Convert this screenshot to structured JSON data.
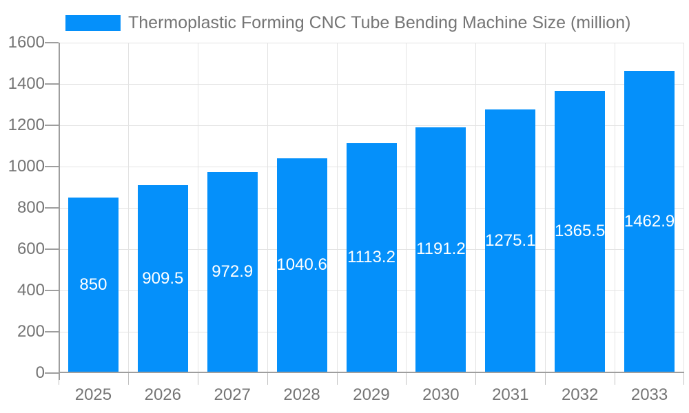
{
  "chart_data": {
    "type": "bar",
    "title": "Thermoplastic Forming CNC Tube Bending Machine Size (million)",
    "categories": [
      "2025",
      "2026",
      "2027",
      "2028",
      "2029",
      "2030",
      "2031",
      "2032",
      "2033"
    ],
    "values": [
      850,
      909.5,
      972.9,
      1040.6,
      1113.2,
      1191.2,
      1275.1,
      1365.5,
      1462.9
    ],
    "value_labels": [
      "850",
      "909.5",
      "972.9",
      "1040.6",
      "1113.2",
      "1191.2",
      "1275.1",
      "1365.5",
      "1462.9"
    ],
    "xlabel": "",
    "ylabel": "",
    "ylim": [
      0,
      1600
    ],
    "y_ticks": [
      0,
      200,
      400,
      600,
      800,
      1000,
      1200,
      1400,
      1600
    ],
    "grid": true,
    "legend_position": "top",
    "colors": {
      "bar": "#0590FA",
      "bar_value_label": "#ffffff",
      "axis_text": "#757575",
      "title_text": "#757575",
      "grid_line": "#e3e3e3",
      "axis_line": "#9e9e9e",
      "x_tick": "#c2c2c2"
    }
  }
}
